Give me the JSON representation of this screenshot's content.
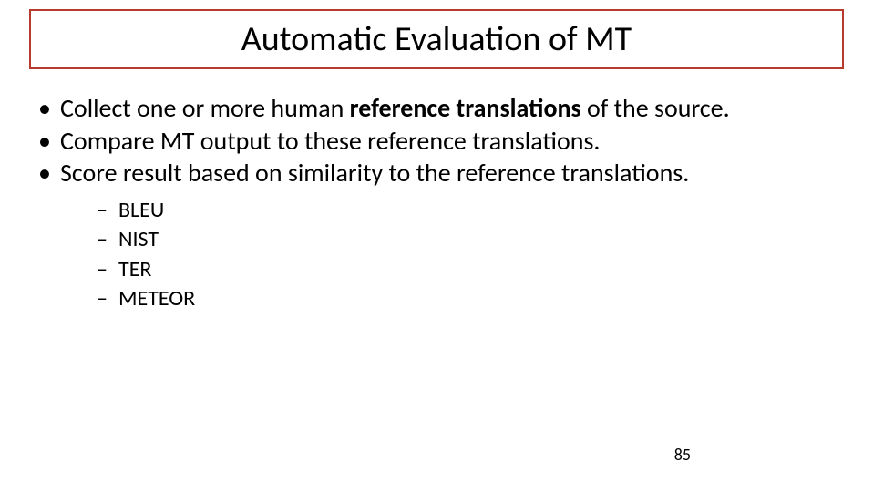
{
  "slide": {
    "title": "Automatic Evaluation of MT",
    "title_border_color": "#b73a2e",
    "bullets_lvl1": [
      {
        "pre": "Collect one or more human ",
        "bold": "reference translations",
        "post": " of the source."
      },
      {
        "pre": "Compare MT output to these reference translations.",
        "bold": "",
        "post": ""
      },
      {
        "pre": "Score result based on similarity to the reference translations.",
        "bold": "",
        "post": ""
      }
    ],
    "bullets_lvl2": [
      "BLEU",
      "NIST",
      "TER",
      "METEOR"
    ],
    "page_number": "85",
    "fonts": {
      "title_size": 38,
      "lvl1_size": 28,
      "lvl2_size": 24,
      "pagenum_size": 18
    },
    "colors": {
      "background": "#ffffff",
      "text": "#000000"
    }
  }
}
